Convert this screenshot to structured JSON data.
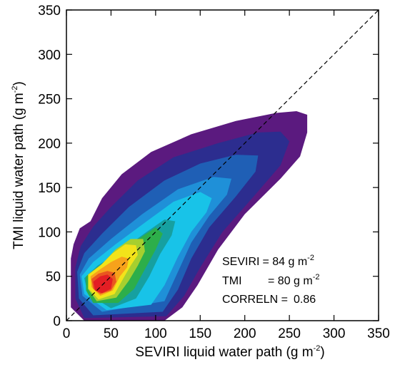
{
  "chart_data": {
    "type": "contour",
    "title": "",
    "xlabel": "SEVIRI liquid water path (g m",
    "xlabel_sup": "-2",
    "xlabel_end": ")",
    "ylabel": "TMI liquid water path (g m",
    "ylabel_sup": "-2",
    "ylabel_end": ")",
    "xlim": [
      0,
      350
    ],
    "ylim": [
      0,
      350
    ],
    "xticks": [
      0,
      50,
      100,
      150,
      200,
      250,
      300,
      350
    ],
    "yticks": [
      0,
      50,
      100,
      150,
      200,
      250,
      300,
      350
    ],
    "one_to_one_line": true,
    "grid": false,
    "levels": [
      {
        "color": "#5b1a7f",
        "points": [
          [
            5,
            70
          ],
          [
            8,
            86
          ],
          [
            15,
            104
          ],
          [
            27,
            112
          ],
          [
            40,
            138
          ],
          [
            62,
            165
          ],
          [
            95,
            190
          ],
          [
            140,
            210
          ],
          [
            190,
            225
          ],
          [
            235,
            234
          ],
          [
            258,
            236
          ],
          [
            270,
            232
          ],
          [
            270,
            212
          ],
          [
            262,
            185
          ],
          [
            240,
            160
          ],
          [
            200,
            120
          ],
          [
            170,
            80
          ],
          [
            147,
            40
          ],
          [
            130,
            15
          ],
          [
            110,
            0
          ],
          [
            20,
            0
          ],
          [
            5,
            15
          ]
        ]
      },
      {
        "color": "#2c2d8f",
        "points": [
          [
            10,
            60
          ],
          [
            16,
            84
          ],
          [
            30,
            106
          ],
          [
            50,
            128
          ],
          [
            80,
            158
          ],
          [
            120,
            184
          ],
          [
            170,
            200
          ],
          [
            215,
            212
          ],
          [
            240,
            213
          ],
          [
            250,
            202
          ],
          [
            240,
            175
          ],
          [
            210,
            140
          ],
          [
            175,
            100
          ],
          [
            150,
            60
          ],
          [
            132,
            28
          ],
          [
            112,
            5
          ],
          [
            20,
            3
          ],
          [
            10,
            25
          ]
        ]
      },
      {
        "color": "#1f5fb5",
        "points": [
          [
            12,
            55
          ],
          [
            20,
            76
          ],
          [
            40,
            98
          ],
          [
            70,
            128
          ],
          [
            110,
            158
          ],
          [
            150,
            177
          ],
          [
            190,
            187
          ],
          [
            215,
            186
          ],
          [
            212,
            168
          ],
          [
            190,
            140
          ],
          [
            160,
            105
          ],
          [
            140,
            70
          ],
          [
            125,
            35
          ],
          [
            108,
            10
          ],
          [
            30,
            6
          ],
          [
            14,
            25
          ]
        ]
      },
      {
        "color": "#1f90d8",
        "points": [
          [
            15,
            52
          ],
          [
            25,
            70
          ],
          [
            50,
            92
          ],
          [
            85,
            120
          ],
          [
            125,
            148
          ],
          [
            165,
            162
          ],
          [
            185,
            160
          ],
          [
            180,
            142
          ],
          [
            160,
            118
          ],
          [
            140,
            88
          ],
          [
            125,
            55
          ],
          [
            110,
            22
          ],
          [
            40,
            10
          ],
          [
            18,
            28
          ]
        ]
      },
      {
        "color": "#18c3e8",
        "points": [
          [
            17,
            50
          ],
          [
            30,
            66
          ],
          [
            55,
            86
          ],
          [
            90,
            112
          ],
          [
            120,
            134
          ],
          [
            150,
            145
          ],
          [
            163,
            138
          ],
          [
            157,
            122
          ],
          [
            140,
            100
          ],
          [
            125,
            72
          ],
          [
            110,
            40
          ],
          [
            95,
            18
          ],
          [
            45,
            12
          ],
          [
            20,
            30
          ]
        ]
      },
      {
        "color": "#16a0a0",
        "points": [
          [
            20,
            48
          ],
          [
            35,
            62
          ],
          [
            60,
            78
          ],
          [
            90,
            100
          ],
          [
            110,
            114
          ],
          [
            122,
            112
          ],
          [
            118,
            96
          ],
          [
            105,
            75
          ],
          [
            93,
            50
          ],
          [
            78,
            25
          ],
          [
            50,
            14
          ],
          [
            24,
            30
          ]
        ]
      },
      {
        "color": "#2dae4a",
        "points": [
          [
            22,
            50
          ],
          [
            38,
            62
          ],
          [
            60,
            76
          ],
          [
            85,
            95
          ],
          [
            100,
            105
          ],
          [
            108,
            98
          ],
          [
            100,
            80
          ],
          [
            88,
            58
          ],
          [
            76,
            36
          ],
          [
            58,
            20
          ],
          [
            30,
            20
          ],
          [
            22,
            34
          ]
        ]
      },
      {
        "color": "#a6cf2f",
        "points": [
          [
            24,
            52
          ],
          [
            40,
            64
          ],
          [
            55,
            80
          ],
          [
            72,
            92
          ],
          [
            86,
            92
          ],
          [
            88,
            78
          ],
          [
            80,
            62
          ],
          [
            70,
            45
          ],
          [
            56,
            26
          ],
          [
            34,
            22
          ],
          [
            24,
            36
          ]
        ]
      },
      {
        "color": "#f2e31a",
        "points": [
          [
            25,
            52
          ],
          [
            38,
            62
          ],
          [
            52,
            76
          ],
          [
            66,
            86
          ],
          [
            78,
            85
          ],
          [
            80,
            74
          ],
          [
            72,
            62
          ],
          [
            64,
            48
          ],
          [
            54,
            30
          ],
          [
            36,
            24
          ],
          [
            25,
            36
          ]
        ]
      },
      {
        "color": "#f7a21b",
        "points": [
          [
            27,
            50
          ],
          [
            38,
            58
          ],
          [
            50,
            66
          ],
          [
            62,
            72
          ],
          [
            70,
            70
          ],
          [
            68,
            60
          ],
          [
            60,
            50
          ],
          [
            52,
            34
          ],
          [
            38,
            28
          ],
          [
            28,
            38
          ]
        ]
      },
      {
        "color": "#e95620",
        "points": [
          [
            28,
            47
          ],
          [
            36,
            53
          ],
          [
            46,
            56
          ],
          [
            54,
            54
          ],
          [
            56,
            44
          ],
          [
            50,
            34
          ],
          [
            38,
            30
          ],
          [
            30,
            36
          ]
        ]
      },
      {
        "color": "#e31e24",
        "points": [
          [
            30,
            44
          ],
          [
            38,
            50
          ],
          [
            46,
            52
          ],
          [
            52,
            47
          ],
          [
            50,
            36
          ],
          [
            40,
            31
          ],
          [
            32,
            34
          ]
        ]
      }
    ]
  },
  "annotations": {
    "seviri_label": "SEVIRI",
    "seviri_value": "= 84 g m",
    "seviri_sup": "-2",
    "tmi_label": "TMI",
    "tmi_value": "= 80 g m",
    "tmi_sup": "-2",
    "correln_label": "CORRELN =",
    "correln_value": "0.86"
  }
}
